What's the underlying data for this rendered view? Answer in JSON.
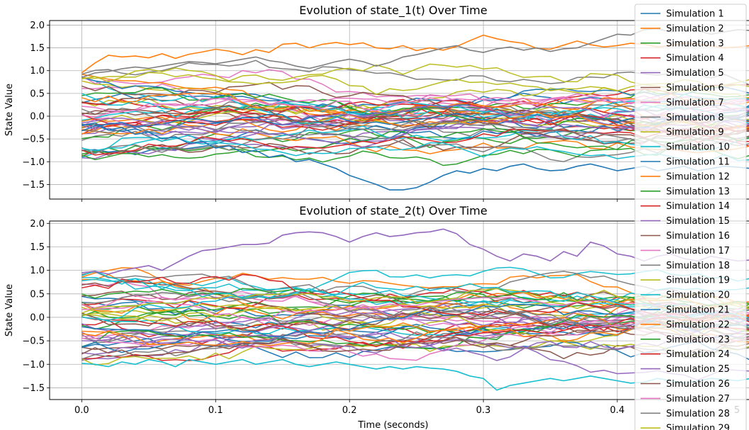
{
  "chart_data": [
    {
      "type": "line",
      "title": "Evolution of state_1(t) Over Time",
      "xlabel": "",
      "ylabel": "State Value",
      "xlim": [
        -0.024,
        0.5
      ],
      "ylim": [
        -1.82,
        2.1
      ],
      "x_ticks": [
        0.0,
        0.1,
        0.2,
        0.3,
        0.4
      ],
      "x_tick_labels": [
        "",
        "",
        "",
        "",
        ""
      ],
      "y_ticks": [
        -1.5,
        -1.0,
        -0.5,
        0.0,
        0.5,
        1.0,
        1.5,
        2.0
      ],
      "y_tick_labels": [
        "−1.5",
        "−1.0",
        "−0.5",
        "0.0",
        "0.5",
        "1.0",
        "1.5",
        "2.0"
      ],
      "grid": true,
      "n_series": 50,
      "x": [
        0.0,
        0.01,
        0.02,
        0.03,
        0.04,
        0.05,
        0.06,
        0.07,
        0.08,
        0.09,
        0.1,
        0.11,
        0.12,
        0.13,
        0.14,
        0.15,
        0.16,
        0.17,
        0.18,
        0.19,
        0.2,
        0.21,
        0.22,
        0.23,
        0.24,
        0.25,
        0.26,
        0.27,
        0.28,
        0.29,
        0.3,
        0.31,
        0.32,
        0.33,
        0.34,
        0.35,
        0.36,
        0.37,
        0.38,
        0.39,
        0.4,
        0.41,
        0.42,
        0.43,
        0.44,
        0.45,
        0.46,
        0.47,
        0.48,
        0.49,
        0.5
      ],
      "highlight_series": [
        {
          "name": "Simulation 2",
          "values": [
            0.95,
            1.17,
            1.34,
            1.3,
            1.32,
            1.28,
            1.37,
            1.27,
            1.36,
            1.41,
            1.47,
            1.43,
            1.35,
            1.46,
            1.4,
            1.58,
            1.6,
            1.5,
            1.58,
            1.62,
            1.57,
            1.61,
            1.5,
            1.48,
            1.55,
            1.44,
            1.5,
            1.45,
            1.53,
            1.66,
            1.78,
            1.7,
            1.64,
            1.6,
            1.49,
            1.47,
            1.56,
            1.65,
            1.57,
            1.52,
            1.55,
            1.6,
            1.58,
            1.52,
            1.55,
            1.6,
            1.58,
            1.55,
            1.5,
            1.52,
            1.55
          ]
        },
        {
          "name": "Simulation 8",
          "values": [
            0.85,
            0.95,
            0.98,
            1.04,
            1.08,
            1.05,
            1.1,
            1.15,
            1.2,
            1.18,
            1.15,
            1.2,
            1.25,
            1.3,
            1.22,
            1.18,
            1.1,
            1.05,
            1.12,
            1.2,
            1.25,
            1.2,
            1.1,
            1.18,
            1.3,
            1.35,
            1.42,
            1.5,
            1.55,
            1.45,
            1.4,
            1.48,
            1.52,
            1.45,
            1.5,
            1.42,
            1.48,
            1.5,
            1.6,
            1.7,
            1.8,
            1.78,
            1.9,
            1.92,
            1.85,
            1.9,
            1.88,
            1.8,
            1.85,
            1.9,
            1.88
          ]
        },
        {
          "name": "Simulation 1",
          "values": [
            -0.2,
            -0.15,
            -0.3,
            -0.25,
            -0.4,
            -0.35,
            -0.5,
            -0.45,
            -0.6,
            -0.55,
            -0.7,
            -0.65,
            -0.8,
            -0.75,
            -0.9,
            -0.85,
            -1.0,
            -0.95,
            -1.05,
            -1.15,
            -1.3,
            -1.4,
            -1.5,
            -1.62,
            -1.62,
            -1.57,
            -1.45,
            -1.3,
            -1.2,
            -1.25,
            -1.15,
            -1.2,
            -1.1,
            -1.05,
            -1.15,
            -1.2,
            -1.18,
            -1.1,
            -1.05,
            -1.12,
            -1.2,
            -1.15,
            -1.1,
            -1.2,
            -1.15,
            -1.1,
            -1.2,
            -1.15,
            -1.1,
            -1.12,
            -1.15
          ]
        }
      ]
    },
    {
      "type": "line",
      "title": "Evolution of state_2(t) Over Time",
      "xlabel": "Time (seconds)",
      "ylabel": "State Value",
      "xlim": [
        -0.024,
        0.5
      ],
      "ylim": [
        -1.75,
        2.05
      ],
      "x_ticks": [
        0.0,
        0.1,
        0.2,
        0.3,
        0.4
      ],
      "x_tick_labels": [
        "0.0",
        "0.1",
        "0.2",
        "0.3",
        "0.4"
      ],
      "y_ticks": [
        -1.5,
        -1.0,
        -0.5,
        0.0,
        0.5,
        1.0,
        1.5,
        2.0
      ],
      "y_tick_labels": [
        "−1.5",
        "−1.0",
        "−0.5",
        "0.0",
        "0.5",
        "1.0",
        "1.5",
        "2.0"
      ],
      "grid": true,
      "n_series": 50,
      "x": [
        0.0,
        0.01,
        0.02,
        0.03,
        0.04,
        0.05,
        0.06,
        0.07,
        0.08,
        0.09,
        0.1,
        0.11,
        0.12,
        0.13,
        0.14,
        0.15,
        0.16,
        0.17,
        0.18,
        0.19,
        0.2,
        0.21,
        0.22,
        0.23,
        0.24,
        0.25,
        0.26,
        0.27,
        0.28,
        0.29,
        0.3,
        0.31,
        0.32,
        0.33,
        0.34,
        0.35,
        0.36,
        0.37,
        0.38,
        0.39,
        0.4,
        0.41,
        0.42,
        0.43,
        0.44,
        0.45,
        0.46,
        0.47,
        0.48,
        0.49,
        0.5
      ],
      "highlight_series": [
        {
          "name": "Simulation 5",
          "values": [
            0.95,
            0.98,
            0.92,
            1.0,
            1.05,
            1.1,
            1.0,
            1.15,
            1.3,
            1.42,
            1.45,
            1.5,
            1.55,
            1.55,
            1.58,
            1.75,
            1.8,
            1.82,
            1.8,
            1.72,
            1.6,
            1.72,
            1.8,
            1.72,
            1.75,
            1.8,
            1.82,
            1.88,
            1.78,
            1.55,
            1.45,
            1.3,
            1.2,
            1.35,
            1.3,
            1.2,
            1.4,
            1.3,
            1.6,
            1.52,
            1.35,
            1.3,
            1.2,
            1.3,
            1.35,
            1.25,
            1.2,
            1.3,
            1.25,
            1.2,
            1.22
          ]
        },
        {
          "name": "Simulation 10",
          "values": [
            -0.98,
            -1.0,
            -1.05,
            -0.95,
            -1.0,
            -0.9,
            -0.95,
            -1.05,
            -0.9,
            -0.95,
            -1.0,
            -0.95,
            -0.9,
            -1.0,
            -0.95,
            -0.9,
            -1.0,
            -1.05,
            -1.0,
            -0.95,
            -1.0,
            -1.05,
            -1.1,
            -1.05,
            -1.1,
            -1.05,
            -1.08,
            -1.1,
            -1.15,
            -1.25,
            -1.3,
            -1.55,
            -1.45,
            -1.4,
            -1.35,
            -1.3,
            -1.35,
            -1.3,
            -1.25,
            -1.3,
            -1.35,
            -1.4,
            -1.38,
            -1.3,
            -1.35,
            -1.4,
            -1.35,
            -1.3,
            -1.32,
            -1.35,
            -1.3
          ]
        }
      ]
    }
  ],
  "legend": {
    "placement": "right, overlapping the plots",
    "entries": [
      "Simulation 1",
      "Simulation 2",
      "Simulation 3",
      "Simulation 4",
      "Simulation 5",
      "Simulation 6",
      "Simulation 7",
      "Simulation 8",
      "Simulation 9",
      "Simulation 10",
      "Simulation 11",
      "Simulation 12",
      "Simulation 13",
      "Simulation 14",
      "Simulation 15",
      "Simulation 16",
      "Simulation 17",
      "Simulation 18",
      "Simulation 19",
      "Simulation 20",
      "Simulation 21",
      "Simulation 22",
      "Simulation 23",
      "Simulation 24",
      "Simulation 25",
      "Simulation 26",
      "Simulation 27",
      "Simulation 28",
      "Simulation 29"
    ]
  },
  "colors": [
    "#1f77b4",
    "#ff7f0e",
    "#2ca02c",
    "#d62728",
    "#9467bd",
    "#8c564b",
    "#e377c2",
    "#7f7f7f",
    "#bcbd22",
    "#17becf"
  ],
  "partial_tick_label": "5"
}
